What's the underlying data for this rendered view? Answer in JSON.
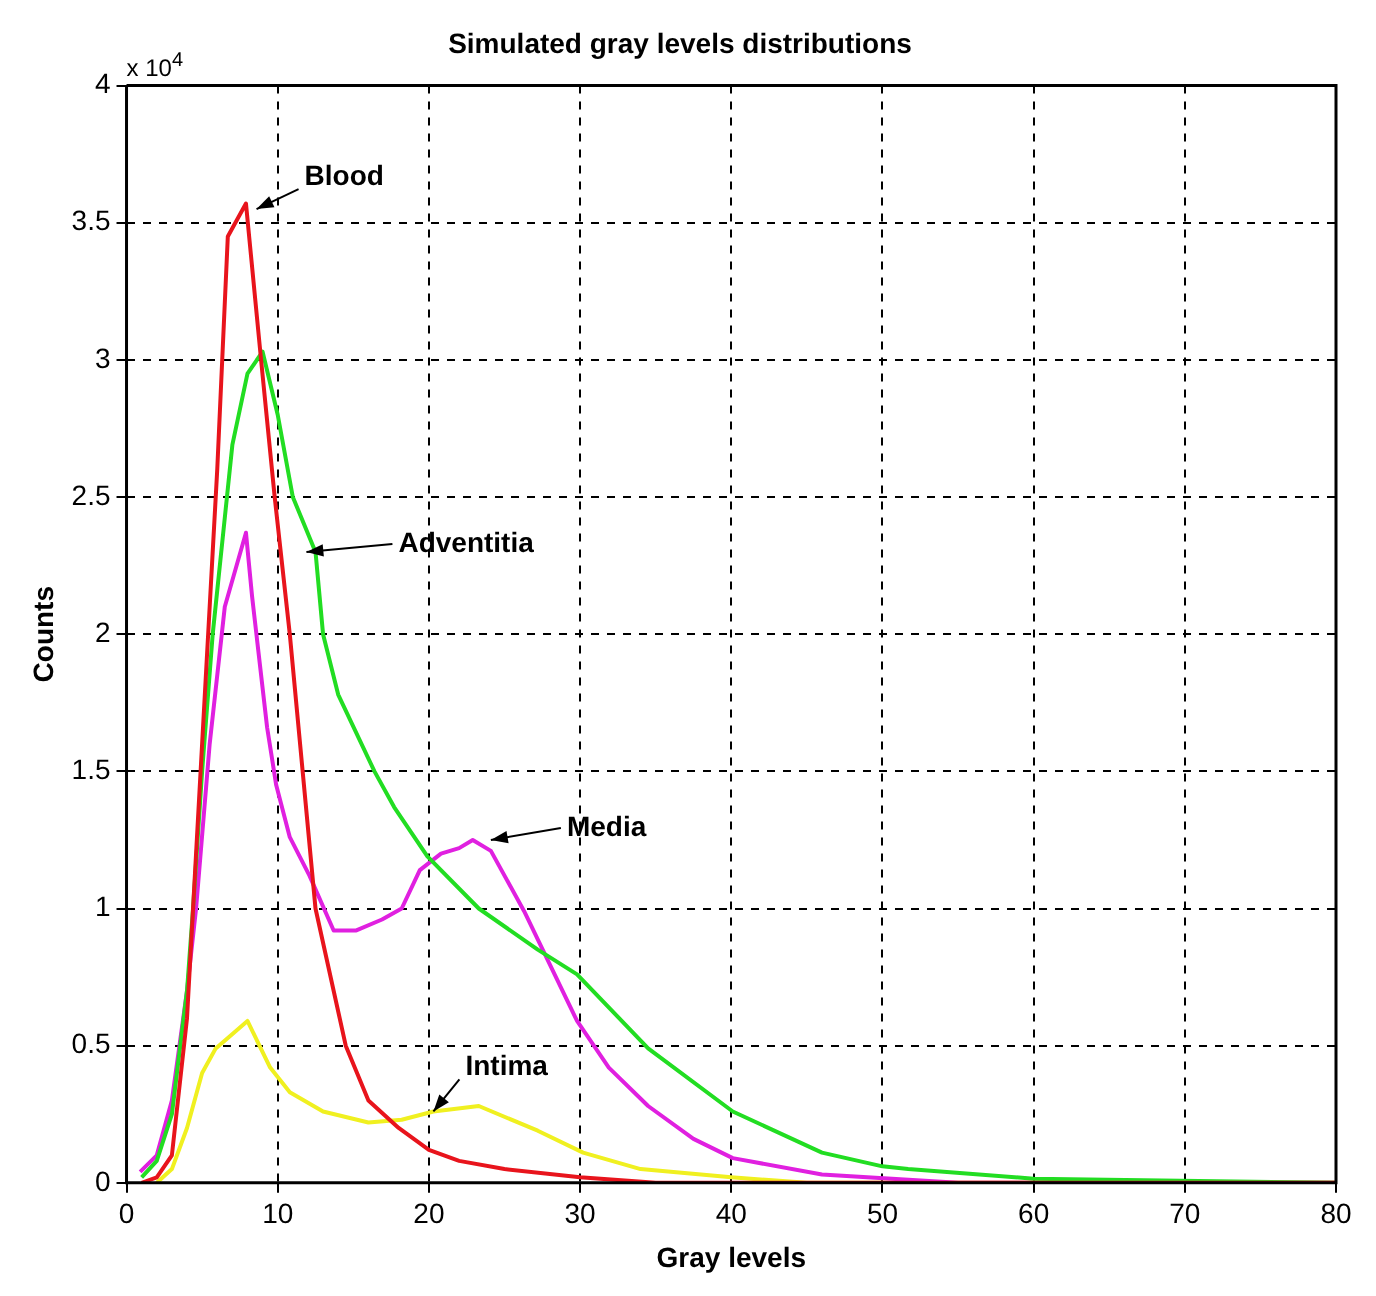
{
  "chart_data": {
    "type": "line",
    "title": "Simulated gray levels distributions",
    "xlabel": "Gray levels",
    "ylabel": "Counts",
    "xlim": [
      0,
      80
    ],
    "xticks": [
      0,
      10,
      20,
      30,
      40,
      50,
      60,
      70,
      80
    ],
    "ylim": [
      0,
      4
    ],
    "yticks": [
      0,
      0.5,
      1,
      1.5,
      2,
      2.5,
      3,
      3.5,
      4
    ],
    "grid": true,
    "marker": "none",
    "line_style": "solid",
    "annotations": [
      "x 10$^{4}$",
      {
        "text": "Blood",
        "x": 8.6,
        "y": 3.55
      },
      {
        "text": "Adventitia",
        "x": 11.9,
        "y": 2.3
      },
      {
        "text": "Media",
        "x": 24.1,
        "y": 1.25
      },
      {
        "text": "Intima",
        "x": 20.3,
        "y": 0.26
      }
    ],
    "series": [
      {
        "color": "#e8141c",
        "x": [
          1,
          2,
          3,
          4,
          4.4,
          5,
          5.4,
          6,
          6.7,
          7.9,
          8.9,
          9.8,
          10.8,
          12.5,
          14.5,
          16,
          18,
          20,
          22,
          25,
          30,
          35,
          80
        ],
        "values": [
          0,
          0.02,
          0.1,
          0.6,
          1,
          1.6,
          2,
          2.6,
          3.45,
          3.57,
          3,
          2.5,
          2,
          1,
          0.5,
          0.3,
          0.2,
          0.12,
          0.08,
          0.05,
          0.02,
          0,
          0
        ]
      },
      {
        "color": "#22dd22",
        "x": [
          1,
          2,
          3,
          4,
          4.4,
          5,
          5.7,
          7,
          8,
          9,
          10,
          11,
          12.5,
          13,
          14,
          16.4,
          17.7,
          19.9,
          23.3,
          27.2,
          29.8,
          34.5,
          40.1,
          46,
          50,
          51.7,
          60,
          80
        ],
        "values": [
          0.02,
          0.08,
          0.25,
          0.7,
          1,
          1.5,
          2,
          2.69,
          2.95,
          3.03,
          2.8,
          2.5,
          2.3,
          2,
          1.78,
          1.5,
          1.37,
          1.19,
          1,
          0.85,
          0.76,
          0.49,
          0.26,
          0.11,
          0.06,
          0.05,
          0.015,
          0
        ]
      },
      {
        "color": "#e020e0",
        "x": [
          0.9,
          2,
          3,
          4,
          4.6,
          5.5,
          6.5,
          7.9,
          8.3,
          9.3,
          9.9,
          10.8,
          12.1,
          13.7,
          15.2,
          16.9,
          18.2,
          19.4,
          20.8,
          22,
          22.9,
          24.1,
          26.3,
          29.8,
          31.9,
          34.5,
          37.5,
          40.1,
          46,
          55,
          80
        ],
        "values": [
          0.04,
          0.1,
          0.3,
          0.7,
          1,
          1.6,
          2.1,
          2.37,
          2.14,
          1.66,
          1.45,
          1.26,
          1.12,
          0.92,
          0.92,
          0.96,
          1,
          1.14,
          1.2,
          1.22,
          1.25,
          1.21,
          0.99,
          0.59,
          0.42,
          0.28,
          0.16,
          0.09,
          0.03,
          0,
          0
        ]
      },
      {
        "color": "#f0f020",
        "x": [
          2,
          3,
          4,
          5,
          5.9,
          8,
          9.5,
          10.8,
          13,
          16,
          18.2,
          20.3,
          23.3,
          27.2,
          30.2,
          34,
          40,
          45,
          80
        ],
        "values": [
          0,
          0.05,
          0.2,
          0.4,
          0.49,
          0.59,
          0.42,
          0.33,
          0.26,
          0.22,
          0.23,
          0.26,
          0.28,
          0.19,
          0.11,
          0.05,
          0.02,
          0,
          0
        ]
      }
    ]
  }
}
